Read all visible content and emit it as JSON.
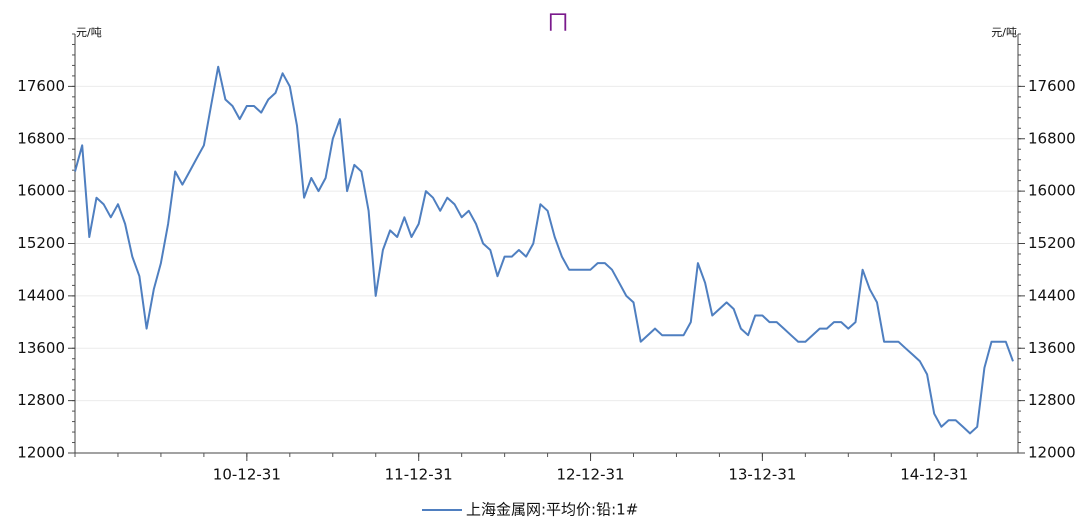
{
  "chart_data": {
    "type": "line",
    "title": "ㄇ",
    "y_unit": "元/吨",
    "y2_unit": "元/吨",
    "categories": [
      null,
      null,
      null,
      null,
      null,
      null,
      null,
      null,
      null,
      null,
      null,
      null,
      null,
      null,
      null,
      null,
      null,
      null,
      null,
      null,
      null,
      null,
      null,
      null,
      "10-12-31",
      null,
      null,
      null,
      null,
      null,
      null,
      null,
      null,
      null,
      null,
      null,
      null,
      null,
      null,
      null,
      null,
      null,
      null,
      null,
      null,
      null,
      null,
      null,
      "11-12-31",
      null,
      null,
      null,
      null,
      null,
      null,
      null,
      null,
      null,
      null,
      null,
      null,
      null,
      null,
      null,
      null,
      null,
      null,
      null,
      null,
      null,
      null,
      null,
      "12-12-31",
      null,
      null,
      null,
      null,
      null,
      null,
      null,
      null,
      null,
      null,
      null,
      null,
      null,
      null,
      null,
      null,
      null,
      null,
      null,
      null,
      null,
      null,
      null,
      "13-12-31",
      null,
      null,
      null,
      null,
      null,
      null,
      null,
      null,
      null,
      null,
      null,
      null,
      null,
      null,
      null,
      null,
      null,
      null,
      null,
      null,
      null,
      null,
      null,
      "14-12-31",
      null,
      null,
      null,
      null,
      null,
      null,
      null,
      null,
      null,
      null,
      null
    ],
    "series": [
      {
        "name": "上海金属网:平均价:铅:1#",
        "color": "#4f7fc0",
        "values": [
          16300,
          16700,
          15300,
          15900,
          15800,
          15600,
          15800,
          15500,
          15000,
          14700,
          13900,
          14500,
          14900,
          15500,
          16300,
          16100,
          16300,
          16500,
          16700,
          17300,
          17900,
          17400,
          17300,
          17100,
          17300,
          17300,
          17200,
          17400,
          17500,
          17800,
          17600,
          17000,
          15900,
          16200,
          16000,
          16200,
          16800,
          17100,
          16000,
          16400,
          16300,
          15700,
          14400,
          15100,
          15400,
          15300,
          15600,
          15300,
          15500,
          16000,
          15900,
          15700,
          15900,
          15800,
          15600,
          15700,
          15500,
          15200,
          15100,
          14700,
          15000,
          15000,
          15100,
          15000,
          15200,
          15800,
          15700,
          15300,
          15000,
          14800,
          14800,
          14800,
          14800,
          14900,
          14900,
          14800,
          14600,
          14400,
          14300,
          13700,
          13800,
          13900,
          13800,
          13800,
          13800,
          13800,
          14000,
          14900,
          14600,
          14100,
          14200,
          14300,
          14200,
          13900,
          13800,
          14100,
          14100,
          14000,
          14000,
          13900,
          13800,
          13700,
          13700,
          13800,
          13900,
          13900,
          14000,
          14000,
          13900,
          14000,
          14800,
          14500,
          14300,
          13700,
          13700,
          13700,
          13600,
          13500,
          13400,
          13200,
          12600,
          12400,
          12500,
          12500,
          12400,
          12300,
          12400,
          13300,
          13700,
          13700,
          13700,
          13400
        ]
      }
    ],
    "ylim": [
      12000,
      18400
    ],
    "yticks": [
      12000,
      12800,
      13600,
      14400,
      15200,
      16000,
      16800,
      17600
    ],
    "y2lim": [
      12000,
      18400
    ],
    "y2ticks": [
      12000,
      12800,
      13600,
      14400,
      15200,
      16000,
      16800,
      17600
    ],
    "grid": true
  }
}
